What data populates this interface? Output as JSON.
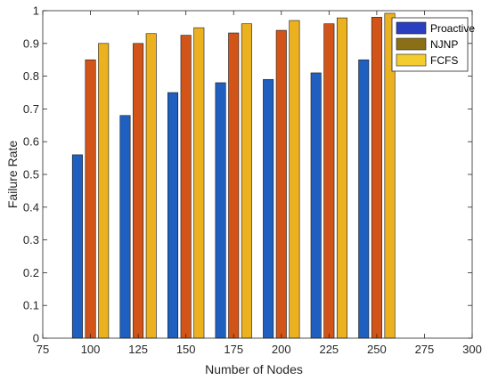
{
  "chart_data": {
    "type": "bar",
    "title": "",
    "xlabel": "Number of Nodes",
    "ylabel": "Failure Rate",
    "xlim": [
      75,
      300
    ],
    "ylim": [
      0,
      1
    ],
    "xticks": [
      "75",
      "100",
      "125",
      "150",
      "175",
      "200",
      "225",
      "250",
      "275",
      "300"
    ],
    "yticks": [
      "0",
      "0.1",
      "0.2",
      "0.3",
      "0.4",
      "0.5",
      "0.6",
      "0.7",
      "0.8",
      "0.9",
      "1"
    ],
    "categories": [
      100,
      125,
      150,
      175,
      200,
      225,
      250
    ],
    "grid": false,
    "legend_position": "top-right",
    "series": [
      {
        "name": "Proactive",
        "color": "#1f5fbf",
        "values": [
          0.56,
          0.68,
          0.75,
          0.78,
          0.79,
          0.81,
          0.85
        ]
      },
      {
        "name": "NJNP",
        "color": "#d35418",
        "values": [
          0.85,
          0.9,
          0.925,
          0.932,
          0.94,
          0.96,
          0.98
        ]
      },
      {
        "name": "FCFS",
        "color": "#ecb11f",
        "values": [
          0.9,
          0.93,
          0.948,
          0.96,
          0.97,
          0.978,
          0.992
        ]
      }
    ],
    "legend_colors": [
      "#2a3fbf",
      "#8a6f16",
      "#f3cd2e"
    ]
  }
}
